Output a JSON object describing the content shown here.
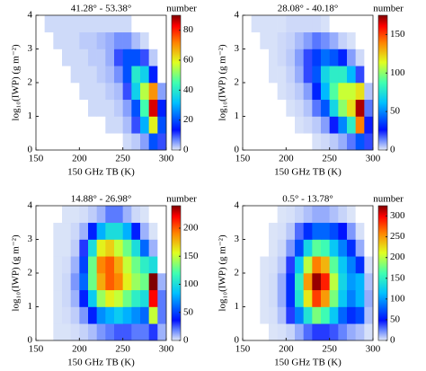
{
  "chart_data": [
    {
      "type": "heatmap",
      "title": "41.28° - 53.38°",
      "xlabel": "150 GHz TB (K)",
      "ylabel": "log₁₀(IWP) (g m⁻²)",
      "colorbar_label": "number",
      "colormap": "jet",
      "xlim": [
        150,
        300
      ],
      "xticks": [
        150,
        200,
        250,
        300
      ],
      "ylim": [
        0,
        4
      ],
      "yticks": [
        0,
        1,
        2,
        3,
        4
      ],
      "x_bins": [
        150,
        160,
        170,
        180,
        190,
        200,
        210,
        220,
        230,
        240,
        250,
        260,
        270,
        280,
        290,
        300
      ],
      "y_bins": [
        0,
        0.5,
        1,
        1.5,
        2,
        2.5,
        3,
        3.5,
        4
      ],
      "z": [
        [
          0,
          0,
          0,
          0,
          0,
          0,
          0,
          0,
          0,
          0,
          1,
          2,
          5,
          20,
          10
        ],
        [
          0,
          0,
          0,
          0,
          0,
          0,
          0,
          0,
          1,
          1,
          3,
          10,
          30,
          60,
          20
        ],
        [
          0,
          0,
          0,
          0,
          0,
          0,
          1,
          1,
          1,
          2,
          5,
          20,
          45,
          85,
          15
        ],
        [
          0,
          0,
          0,
          0,
          0,
          1,
          1,
          1,
          2,
          3,
          10,
          35,
          55,
          70,
          5
        ],
        [
          0,
          0,
          0,
          0,
          1,
          1,
          1,
          2,
          3,
          6,
          20,
          40,
          35,
          15,
          0
        ],
        [
          0,
          0,
          0,
          1,
          1,
          1,
          2,
          2,
          4,
          10,
          20,
          20,
          10,
          2,
          0
        ],
        [
          0,
          0,
          1,
          1,
          1,
          2,
          2,
          3,
          4,
          6,
          6,
          3,
          1,
          0,
          0
        ],
        [
          0,
          1,
          1,
          1,
          1,
          1,
          1,
          1,
          1,
          1,
          1,
          0,
          0,
          0,
          0
        ]
      ],
      "clim": [
        0,
        90
      ],
      "cticks": [
        0,
        20,
        40,
        60,
        80
      ]
    },
    {
      "type": "heatmap",
      "title": "28.08° - 40.18°",
      "xlabel": "150 GHz TB (K)",
      "ylabel": "log₁₀(IWP) (g m⁻²)",
      "colorbar_label": "number",
      "colormap": "jet",
      "xlim": [
        150,
        300
      ],
      "xticks": [
        150,
        200,
        250,
        300
      ],
      "ylim": [
        0,
        4
      ],
      "yticks": [
        0,
        1,
        2,
        3,
        4
      ],
      "x_bins": [
        150,
        160,
        170,
        180,
        190,
        200,
        210,
        220,
        230,
        240,
        250,
        260,
        270,
        280,
        290,
        300
      ],
      "y_bins": [
        0,
        0.5,
        1,
        1.5,
        2,
        2.5,
        3,
        3.5,
        4
      ],
      "z": [
        [
          0,
          0,
          0,
          0,
          0,
          0,
          0,
          0,
          1,
          2,
          4,
          8,
          15,
          40,
          20
        ],
        [
          0,
          0,
          0,
          0,
          0,
          0,
          1,
          2,
          4,
          10,
          25,
          50,
          80,
          140,
          25
        ],
        [
          0,
          0,
          0,
          0,
          0,
          1,
          2,
          5,
          15,
          40,
          70,
          100,
          120,
          170,
          15
        ],
        [
          0,
          0,
          0,
          0,
          1,
          2,
          4,
          10,
          30,
          60,
          90,
          110,
          110,
          120,
          5
        ],
        [
          0,
          0,
          0,
          1,
          1,
          3,
          8,
          20,
          40,
          70,
          80,
          80,
          60,
          20,
          0
        ],
        [
          0,
          0,
          0,
          1,
          2,
          4,
          10,
          20,
          35,
          45,
          40,
          30,
          10,
          2,
          0
        ],
        [
          0,
          0,
          1,
          1,
          2,
          3,
          6,
          10,
          15,
          12,
          8,
          3,
          1,
          0,
          0
        ],
        [
          0,
          1,
          1,
          1,
          1,
          2,
          2,
          2,
          2,
          1,
          0,
          0,
          0,
          0,
          0
        ]
      ],
      "clim": [
        0,
        175
      ],
      "cticks": [
        0,
        50,
        100,
        150
      ]
    },
    {
      "type": "heatmap",
      "title": "14.88° - 26.98°",
      "xlabel": "150 GHz TB (K)",
      "ylabel": "log₁₀(IWP) (g m⁻²)",
      "colorbar_label": "number",
      "colormap": "jet",
      "xlim": [
        150,
        300
      ],
      "xticks": [
        150,
        200,
        250,
        300
      ],
      "ylim": [
        0,
        4
      ],
      "yticks": [
        0,
        1,
        2,
        3,
        4
      ],
      "x_bins": [
        150,
        160,
        170,
        180,
        190,
        200,
        210,
        220,
        230,
        240,
        250,
        260,
        270,
        280,
        290,
        300
      ],
      "y_bins": [
        0,
        0.5,
        1,
        1.5,
        2,
        2.5,
        3,
        3.5,
        4
      ],
      "z": [
        [
          0,
          0,
          1,
          1,
          2,
          4,
          8,
          15,
          20,
          25,
          25,
          20,
          20,
          30,
          10
        ],
        [
          0,
          0,
          1,
          2,
          5,
          15,
          40,
          70,
          80,
          90,
          80,
          70,
          60,
          150,
          20
        ],
        [
          0,
          0,
          1,
          3,
          10,
          40,
          90,
          140,
          160,
          150,
          130,
          110,
          100,
          220,
          20
        ],
        [
          0,
          0,
          1,
          3,
          15,
          60,
          130,
          180,
          200,
          190,
          160,
          140,
          130,
          240,
          10
        ],
        [
          0,
          0,
          1,
          2,
          10,
          50,
          130,
          190,
          200,
          180,
          150,
          130,
          110,
          100,
          0
        ],
        [
          0,
          0,
          1,
          1,
          5,
          30,
          100,
          160,
          170,
          150,
          130,
          100,
          60,
          10,
          0
        ],
        [
          0,
          0,
          1,
          1,
          3,
          10,
          40,
          80,
          100,
          100,
          80,
          40,
          10,
          1,
          0
        ],
        [
          0,
          0,
          0,
          1,
          1,
          2,
          5,
          10,
          20,
          20,
          10,
          3,
          1,
          0,
          0
        ]
      ],
      "clim": [
        0,
        240
      ],
      "cticks": [
        0,
        50,
        100,
        150,
        200
      ]
    },
    {
      "type": "heatmap",
      "title": "0.5° - 13.78°",
      "xlabel": "150 GHz TB (K)",
      "ylabel": "log₁₀(IWP) (g m⁻²)",
      "colorbar_label": "number",
      "colormap": "jet",
      "xlim": [
        150,
        300
      ],
      "xticks": [
        150,
        200,
        250,
        300
      ],
      "ylim": [
        0,
        4
      ],
      "yticks": [
        0,
        1,
        2,
        3,
        4
      ],
      "x_bins": [
        150,
        160,
        170,
        180,
        190,
        200,
        210,
        220,
        230,
        240,
        250,
        260,
        270,
        280,
        290,
        300
      ],
      "y_bins": [
        0,
        0.5,
        1,
        1.5,
        2,
        2.5,
        3,
        3.5,
        4
      ],
      "z": [
        [
          0,
          0,
          0,
          1,
          2,
          5,
          15,
          30,
          40,
          40,
          35,
          25,
          15,
          10,
          2
        ],
        [
          0,
          0,
          1,
          2,
          10,
          40,
          90,
          140,
          180,
          160,
          120,
          80,
          60,
          70,
          10
        ],
        [
          0,
          0,
          1,
          3,
          15,
          60,
          140,
          220,
          280,
          250,
          180,
          120,
          90,
          110,
          15
        ],
        [
          0,
          0,
          1,
          3,
          15,
          60,
          150,
          250,
          320,
          290,
          200,
          130,
          100,
          110,
          10
        ],
        [
          0,
          0,
          1,
          2,
          8,
          40,
          120,
          200,
          260,
          240,
          170,
          120,
          90,
          60,
          2
        ],
        [
          0,
          0,
          0,
          1,
          4,
          20,
          70,
          130,
          170,
          160,
          120,
          90,
          60,
          15,
          0
        ],
        [
          0,
          0,
          0,
          1,
          2,
          8,
          30,
          60,
          80,
          80,
          70,
          50,
          20,
          2,
          0
        ],
        [
          0,
          0,
          0,
          0,
          1,
          2,
          5,
          10,
          15,
          15,
          10,
          5,
          1,
          0,
          0
        ]
      ],
      "clim": [
        0,
        325
      ],
      "cticks": [
        0,
        50,
        100,
        150,
        200,
        250,
        300
      ]
    }
  ]
}
